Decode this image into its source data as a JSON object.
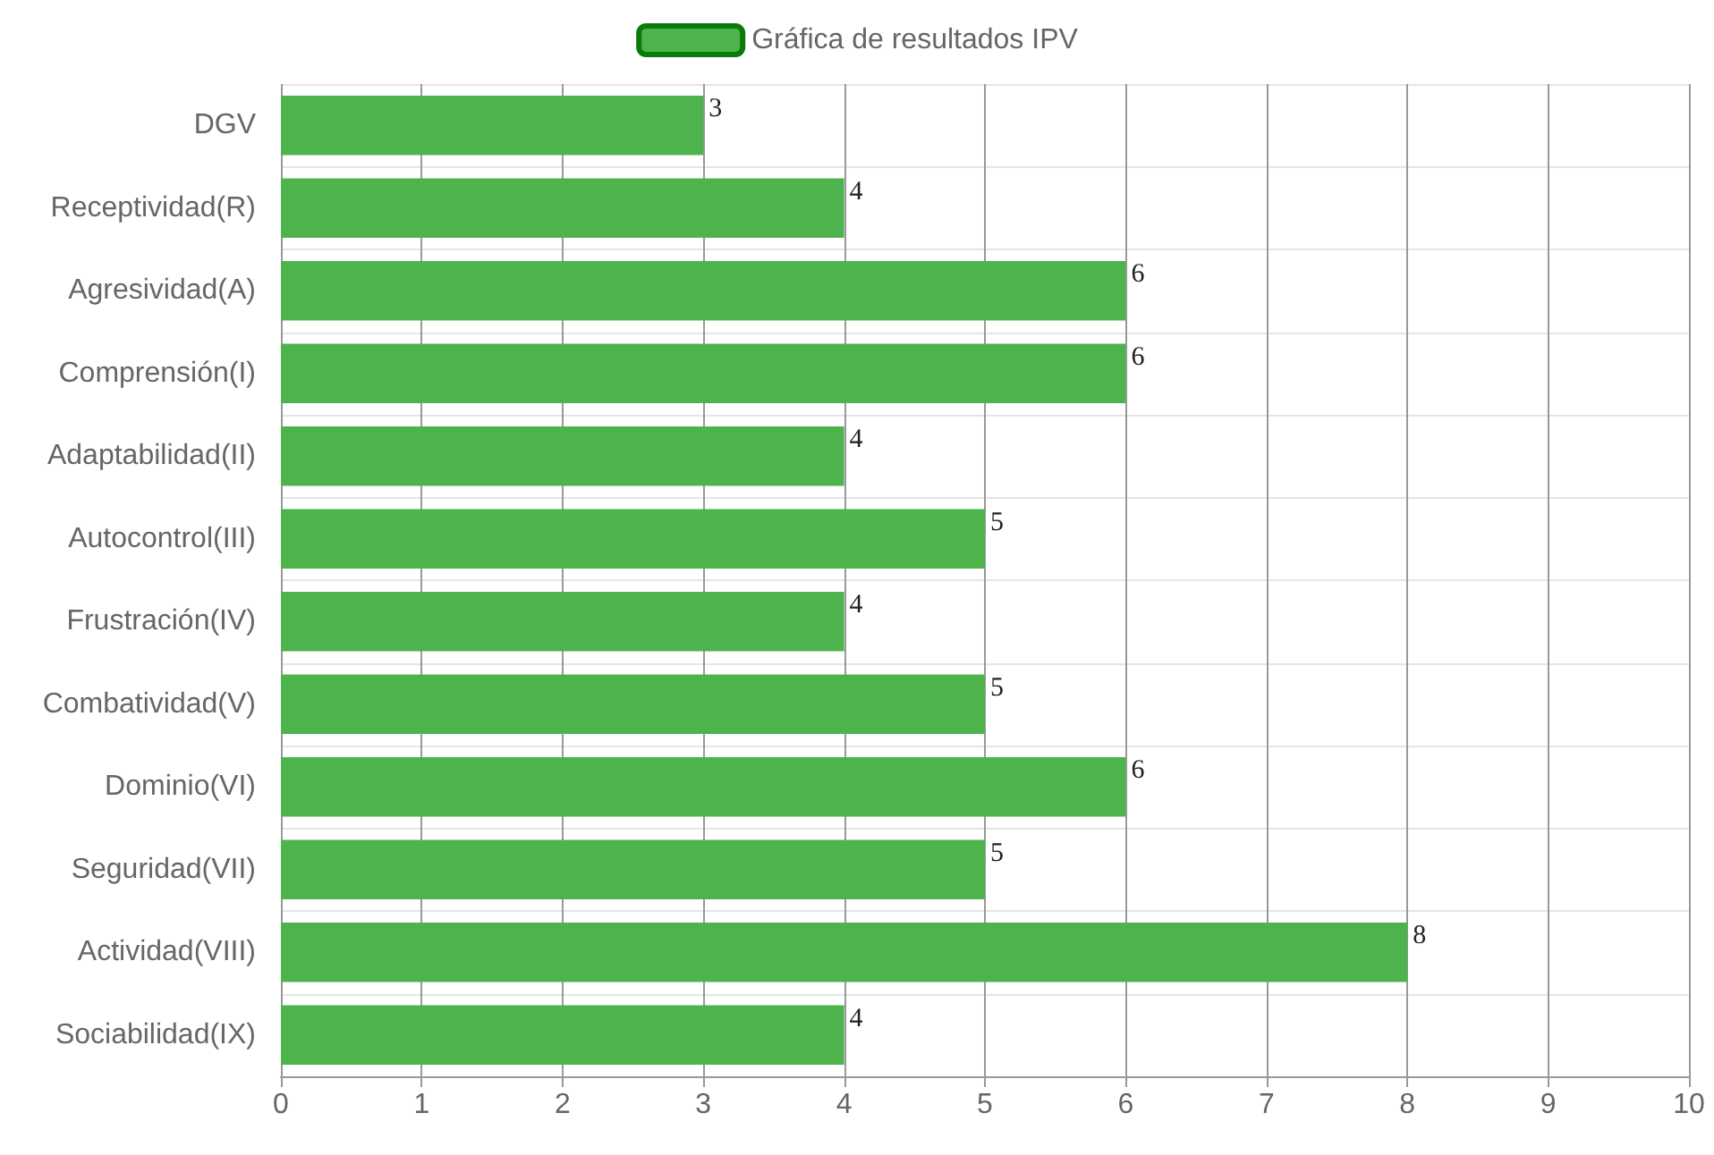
{
  "chart_data": {
    "type": "bar",
    "orientation": "horizontal",
    "categories": [
      "DGV",
      "Receptividad(R)",
      "Agresividad(A)",
      "Comprensión(I)",
      "Adaptabilidad(II)",
      "Autocontrol(III)",
      "Frustración(IV)",
      "Combatividad(V)",
      "Dominio(VI)",
      "Seguridad(VII)",
      "Actividad(VIII)",
      "Sociabilidad(IX)"
    ],
    "series": [
      {
        "name": "Gráfica de resultados IPV",
        "color": "#4db34d",
        "values": [
          3,
          4,
          6,
          6,
          4,
          5,
          4,
          5,
          6,
          5,
          8,
          4
        ]
      }
    ],
    "xlim": [
      0,
      10
    ],
    "xticks": [
      0,
      1,
      2,
      3,
      4,
      5,
      6,
      7,
      8,
      9,
      10
    ],
    "data_labels": true,
    "grid": true,
    "legend": "top"
  }
}
